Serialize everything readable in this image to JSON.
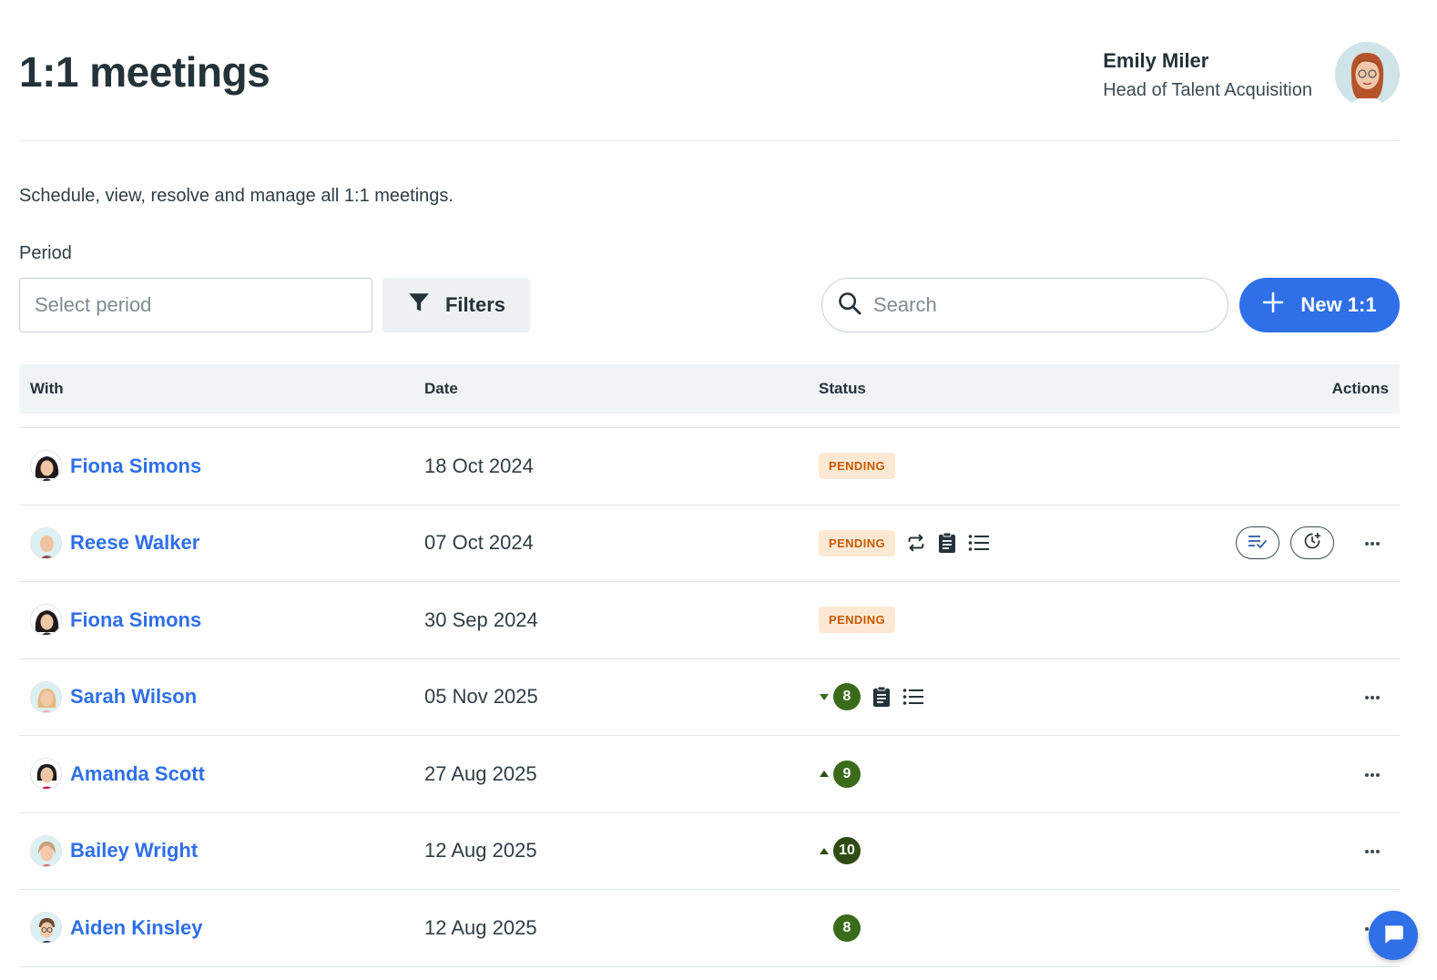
{
  "header": {
    "title": "1:1 meetings",
    "user": {
      "name": "Emily Miler",
      "role": "Head of Talent Acquisition"
    }
  },
  "subtitle": "Schedule, view, resolve and manage all 1:1 meetings.",
  "filters": {
    "period_label": "Period",
    "period_placeholder": "Select period",
    "filters_label": "Filters",
    "search_placeholder": "Search",
    "new_button_label": "New 1:1"
  },
  "table": {
    "columns": {
      "with": "With",
      "date": "Date",
      "status": "Status",
      "actions": "Actions"
    },
    "rows": [
      {
        "name": "Fiona Simons",
        "date": "18 Oct 2024",
        "status": "PENDING"
      },
      {
        "name": "Reese Walker",
        "date": "07 Oct 2024",
        "status": "PENDING",
        "icons": [
          "repeat-icon",
          "clipboard-icon",
          "list-icon"
        ],
        "actions": [
          "resolve-icon",
          "reschedule-icon",
          "more-icon"
        ]
      },
      {
        "name": "Fiona Simons",
        "date": "30 Sep 2024",
        "status": "PENDING"
      },
      {
        "name": "Sarah Wilson",
        "date": "05 Nov 2025",
        "score": "8",
        "trend": "down",
        "icons": [
          "clipboard-icon",
          "list-icon"
        ],
        "actions": [
          "more-icon"
        ]
      },
      {
        "name": "Amanda Scott",
        "date": "27 Aug 2025",
        "score": "9",
        "trend": "up",
        "actions": [
          "more-icon"
        ]
      },
      {
        "name": "Bailey Wright",
        "date": "12 Aug 2025",
        "score": "10",
        "trend": "up",
        "actions": [
          "more-icon"
        ]
      },
      {
        "name": "Aiden Kinsley",
        "date": "12 Aug 2025",
        "score": "8",
        "trend": "none",
        "actions": [
          "more-icon"
        ]
      }
    ]
  },
  "colors": {
    "accent": "#2f6fe8",
    "pending_bg": "#fde9d3",
    "pending_text": "#c65a00",
    "score_green": "#3a6b1a"
  }
}
